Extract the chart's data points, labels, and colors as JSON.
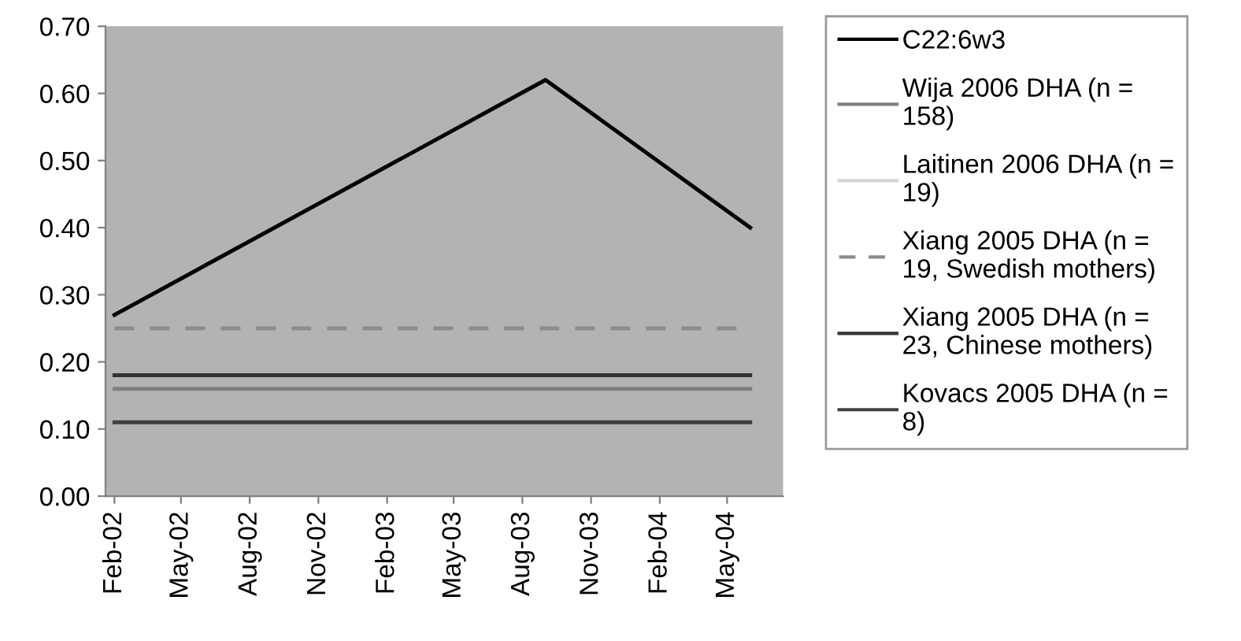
{
  "chart_data": {
    "type": "line",
    "x": [
      "2002-02",
      "2003-09",
      "2004-06"
    ],
    "series": [
      {
        "name": "C22:6w3",
        "color": "#000000",
        "values": [
          0.27,
          0.62,
          0.4
        ]
      },
      {
        "name": "Wija 2006 DHA (n = 158)",
        "color": "#7f7f7f",
        "values": [
          0.16,
          0.16,
          0.16
        ]
      },
      {
        "name": "Laitinen 2006 DHA (n = 19)",
        "color": "#d4d4d4",
        "values": [
          null,
          null,
          null
        ]
      },
      {
        "name": "Xiang 2005 DHA (n = 19, Swedish mothers)",
        "color": "#8c8c8c",
        "line_style": "dashed",
        "values": [
          0.25,
          0.25,
          0.25
        ]
      },
      {
        "name": "Xiang 2005 DHA (n = 23, Chinese mothers)",
        "color": "#333333",
        "values": [
          0.18,
          0.18,
          0.18
        ]
      },
      {
        "name": "Kovacs 2005 DHA (n = 8)",
        "color": "#404040",
        "values": [
          0.11,
          0.11,
          0.11
        ]
      }
    ],
    "xlim": [
      "2002-01-20",
      "2004-07-15"
    ],
    "xticks": [
      {
        "value": "2002-02",
        "label": "Feb-02"
      },
      {
        "value": "2002-05",
        "label": "May-02"
      },
      {
        "value": "2002-08",
        "label": "Aug-02"
      },
      {
        "value": "2002-11",
        "label": "Nov-02"
      },
      {
        "value": "2003-02",
        "label": "Feb-03"
      },
      {
        "value": "2003-05",
        "label": "May-03"
      },
      {
        "value": "2003-08",
        "label": "Aug-03"
      },
      {
        "value": "2003-11",
        "label": "Nov-03"
      },
      {
        "value": "2004-02",
        "label": "Feb-04"
      },
      {
        "value": "2004-05",
        "label": "May-04"
      }
    ],
    "ylim": [
      0,
      0.7
    ],
    "yticks": [
      {
        "value": 0,
        "label": "0.00"
      },
      {
        "value": 0.1,
        "label": "0.10"
      },
      {
        "value": 0.2,
        "label": "0.20"
      },
      {
        "value": 0.3,
        "label": "0.30"
      },
      {
        "value": 0.4,
        "label": "0.40"
      },
      {
        "value": 0.5,
        "label": "0.50"
      },
      {
        "value": 0.6,
        "label": "0.60"
      },
      {
        "value": 0.7,
        "label": "0.70"
      }
    ],
    "grid": false,
    "legend": "right",
    "line_style": "solid"
  }
}
